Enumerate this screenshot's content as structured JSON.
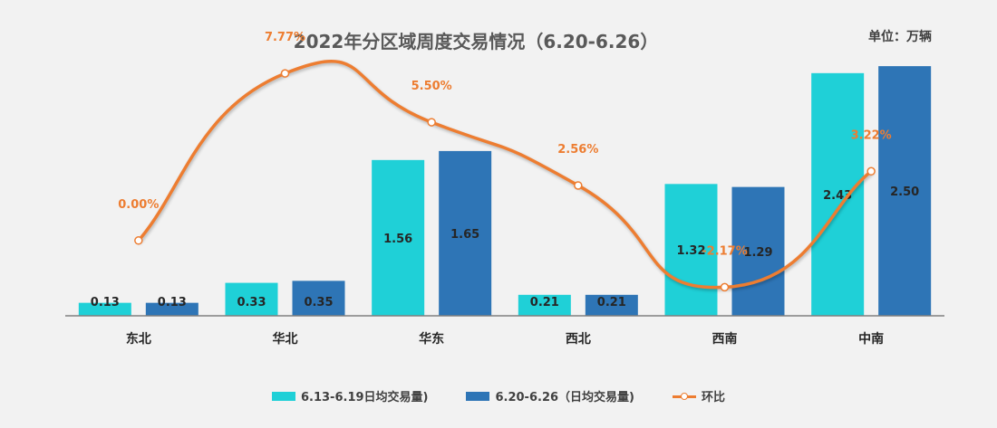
{
  "title": "2022年分区域周度交易情况（6.20-6.26）",
  "unit": "单位：万辆",
  "chart_data": {
    "type": "bar",
    "categories": [
      "东北",
      "华北",
      "华东",
      "西北",
      "西南",
      "中南"
    ],
    "series": [
      {
        "name": "6.13-6.19日均交易量)",
        "type": "bar",
        "color": "#1fd0d7",
        "values": [
          0.13,
          0.33,
          1.56,
          0.21,
          1.32,
          2.43
        ]
      },
      {
        "name": "6.20-6.26（日均交易量)",
        "type": "bar",
        "color": "#2e75b6",
        "values": [
          0.13,
          0.35,
          1.65,
          0.21,
          1.29,
          2.5
        ]
      }
    ],
    "line_series": {
      "name": "环比",
      "type": "line",
      "color": "#ed7d31",
      "values": [
        0.0,
        7.77,
        5.5,
        2.56,
        -2.17,
        3.22
      ],
      "labels": [
        "0.00%",
        "7.77%",
        "5.50%",
        "2.56%",
        "-2.17%",
        "3.22%"
      ]
    },
    "ylim": [
      0,
      2.8
    ],
    "y2lim": [
      -3.5,
      9.5
    ],
    "grid": false,
    "legend_position": "bottom"
  }
}
